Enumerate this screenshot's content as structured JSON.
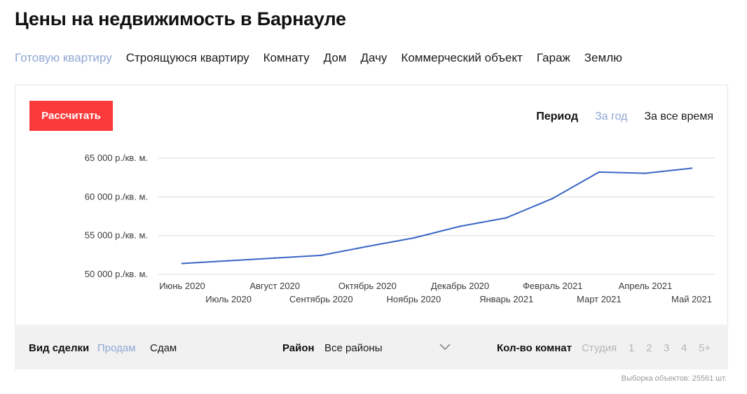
{
  "page": {
    "title": "Цены на недвижимость в Барнауле"
  },
  "property_types": [
    {
      "label": "Готовую квартиру",
      "active": true
    },
    {
      "label": "Строящуюся квартиру",
      "active": false
    },
    {
      "label": "Комнату",
      "active": false
    },
    {
      "label": "Дом",
      "active": false
    },
    {
      "label": "Дачу",
      "active": false
    },
    {
      "label": "Коммерческий объект",
      "active": false
    },
    {
      "label": "Гараж",
      "active": false
    },
    {
      "label": "Землю",
      "active": false
    }
  ],
  "calc_button": "Рассчитать",
  "period": {
    "label": "Период",
    "options": [
      {
        "label": "За год",
        "active": true
      },
      {
        "label": "За все время",
        "active": false
      }
    ]
  },
  "chart_data": {
    "type": "line",
    "categories": [
      "Июнь 2020",
      "Июль 2020",
      "Август 2020",
      "Сентябрь 2020",
      "Октябрь 2020",
      "Ноябрь 2020",
      "Декабрь 2020",
      "Январь 2021",
      "Февраль 2021",
      "Март 2021",
      "Апрель 2021",
      "Май 2021"
    ],
    "series": [
      {
        "values": [
          51400,
          51750,
          52100,
          52450,
          53600,
          54700,
          56200,
          57300,
          59800,
          63200,
          63050,
          63700
        ]
      }
    ],
    "y_ticks": [
      {
        "value": 65000,
        "label": "65 000 р./кв. м."
      },
      {
        "value": 60000,
        "label": "60 000 р./кв. м."
      },
      {
        "value": 55000,
        "label": "55 000 р./кв. м."
      },
      {
        "value": 50000,
        "label": "50 000 р./кв. м."
      }
    ],
    "ylim": [
      50000,
      65000
    ],
    "grid": true,
    "line_color": "#3a66c6",
    "grid_color": "#dcdcdc"
  },
  "filters": {
    "deal_label": "Вид сделки",
    "deal_options": [
      {
        "label": "Продам",
        "active": true
      },
      {
        "label": "Сдам",
        "active": false
      }
    ],
    "district_label": "Район",
    "district_value": "Все районы",
    "rooms_label": "Кол-во комнат",
    "rooms_options": [
      "Студия",
      "1",
      "2",
      "3",
      "4",
      "5+"
    ]
  },
  "footnote": "Выборка объектов: 25561 шт.",
  "colors": {
    "accent_red": "#fb3b3b",
    "active_link": "#8fa7d4"
  }
}
